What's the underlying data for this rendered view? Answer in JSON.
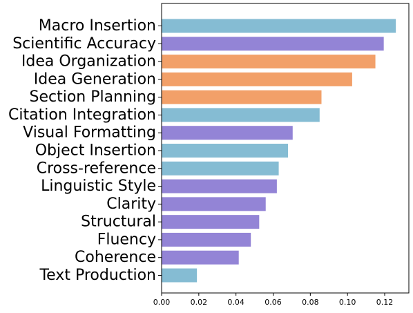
{
  "chart_data": {
    "type": "bar",
    "orientation": "horizontal",
    "title": "",
    "xlabel": "",
    "ylabel": "",
    "xlim": [
      0,
      0.133
    ],
    "xticks": [
      "0.00",
      "0.02",
      "0.04",
      "0.06",
      "0.08",
      "0.10",
      "0.12"
    ],
    "grid": false,
    "categories": [
      "Macro Insertion",
      "Scientific Accuracy",
      "Idea Organization",
      "Idea Generation",
      "Section Planning",
      "Citation Integration",
      "Visual Formatting",
      "Object Insertion",
      "Cross-reference",
      "Linguistic Style",
      "Clarity",
      "Structural",
      "Fluency",
      "Coherence",
      "Text Production"
    ],
    "values": [
      0.126,
      0.1195,
      0.115,
      0.1025,
      0.086,
      0.085,
      0.0705,
      0.068,
      0.063,
      0.062,
      0.056,
      0.0525,
      0.048,
      0.0415,
      0.019
    ],
    "colors": [
      "#85bcd3",
      "#9384d6",
      "#f2a069",
      "#f2a069",
      "#f2a069",
      "#85bcd3",
      "#9384d6",
      "#85bcd3",
      "#85bcd3",
      "#9384d6",
      "#9384d6",
      "#9384d6",
      "#9384d6",
      "#9384d6",
      "#85bcd3"
    ]
  }
}
